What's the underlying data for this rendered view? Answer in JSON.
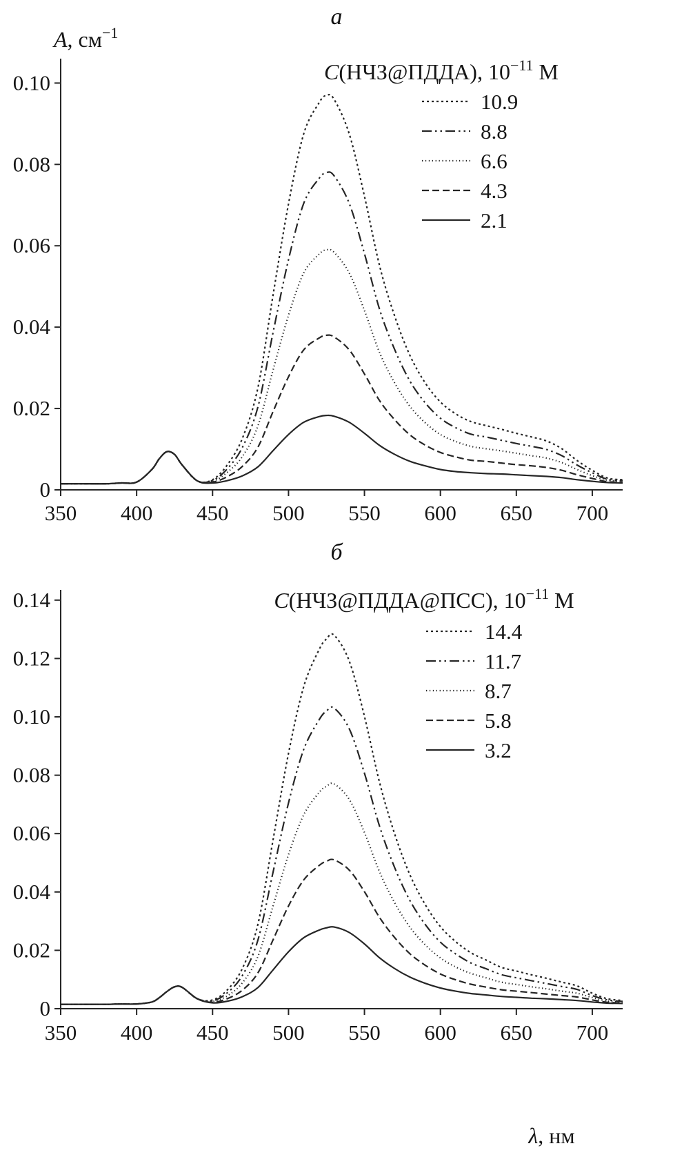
{
  "figure": {
    "background": "#ffffff",
    "line_color": "#262626",
    "text_color": "#161616"
  },
  "line_styles": {
    "dot": "3 4",
    "dashdotdot": "14 5 2.5 5 2.5 5",
    "finedot": "1.3 3.6",
    "dash": "10 5",
    "solid": ""
  },
  "chart_data": [
    {
      "type": "line",
      "panel_label": "а",
      "ylabel": {
        "italic": "A",
        "rest": ", см",
        "sup": "−1"
      },
      "xlabel": null,
      "xlim": [
        350,
        720
      ],
      "ylim": [
        0,
        0.106
      ],
      "x_ticks": [
        350,
        400,
        450,
        500,
        550,
        600,
        650,
        700
      ],
      "y_ticks": [
        0,
        0.02,
        0.04,
        0.06,
        0.08,
        0.1
      ],
      "y_tick_labels": [
        "0",
        "0.02",
        "0.04",
        "0.06",
        "0.08",
        "0.10"
      ],
      "grid": false,
      "legend": {
        "position": "upper-right",
        "title": {
          "italic": "C",
          "rest": "(НЧЗ@ПДДА), 10",
          "sup": "−11",
          "unit": " М"
        },
        "entries": [
          {
            "label": "10.9",
            "style": "dot"
          },
          {
            "label": "8.8",
            "style": "dashdotdot"
          },
          {
            "label": "6.6",
            "style": "finedot"
          },
          {
            "label": "4.3",
            "style": "dash"
          },
          {
            "label": "2.1",
            "style": "solid"
          }
        ]
      },
      "x": [
        350,
        360,
        370,
        380,
        390,
        400,
        410,
        415,
        420,
        425,
        430,
        440,
        450,
        460,
        470,
        480,
        490,
        500,
        510,
        520,
        525,
        530,
        540,
        550,
        560,
        570,
        580,
        590,
        600,
        610,
        620,
        630,
        640,
        650,
        660,
        670,
        680,
        690,
        700,
        710,
        720
      ],
      "series": [
        {
          "name": "10.9",
          "style": "dot",
          "peak_nm": 525,
          "peak_A": 0.097,
          "values": [
            0.0015,
            0.0015,
            0.0015,
            0.0015,
            0.0017,
            0.0019,
            0.005,
            0.0077,
            0.0094,
            0.0087,
            0.0061,
            0.0022,
            0.0025,
            0.0063,
            0.013,
            0.0254,
            0.0483,
            0.0703,
            0.0875,
            0.0951,
            0.097,
            0.096,
            0.0875,
            0.0722,
            0.055,
            0.0426,
            0.033,
            0.0263,
            0.0216,
            0.0187,
            0.0168,
            0.0158,
            0.0149,
            0.0139,
            0.013,
            0.012,
            0.0101,
            0.0072,
            0.0048,
            0.0029,
            0.0025
          ]
        },
        {
          "name": "8.8",
          "style": "dashdotdot",
          "peak_nm": 525,
          "peak_A": 0.078,
          "values": [
            0.0015,
            0.0015,
            0.0015,
            0.0015,
            0.0017,
            0.0019,
            0.005,
            0.0077,
            0.0094,
            0.0087,
            0.0061,
            0.0022,
            0.0023,
            0.0053,
            0.0107,
            0.0206,
            0.039,
            0.0566,
            0.0704,
            0.0765,
            0.078,
            0.0772,
            0.0704,
            0.0581,
            0.0443,
            0.0344,
            0.0267,
            0.0214,
            0.0176,
            0.0153,
            0.0137,
            0.013,
            0.0122,
            0.0114,
            0.0107,
            0.0099,
            0.0084,
            0.0061,
            0.0042,
            0.0026,
            0.0023
          ]
        },
        {
          "name": "6.6",
          "style": "finedot",
          "peak_nm": 525,
          "peak_A": 0.059,
          "values": [
            0.0015,
            0.0015,
            0.0015,
            0.0015,
            0.0017,
            0.0019,
            0.005,
            0.0077,
            0.0094,
            0.0087,
            0.0061,
            0.0022,
            0.0021,
            0.0044,
            0.0084,
            0.0159,
            0.0297,
            0.0429,
            0.0533,
            0.0579,
            0.059,
            0.0584,
            0.0533,
            0.0441,
            0.0337,
            0.0262,
            0.0205,
            0.0165,
            0.0136,
            0.0119,
            0.0107,
            0.0101,
            0.0096,
            0.009,
            0.0084,
            0.0078,
            0.0067,
            0.005,
            0.0035,
            0.0024,
            0.0021
          ]
        },
        {
          "name": "4.3",
          "style": "dash",
          "peak_nm": 525,
          "peak_A": 0.038,
          "values": [
            0.0015,
            0.0015,
            0.0015,
            0.0015,
            0.0017,
            0.0019,
            0.005,
            0.0077,
            0.0094,
            0.0087,
            0.0061,
            0.0022,
            0.0019,
            0.0033,
            0.0059,
            0.0106,
            0.0194,
            0.0278,
            0.0344,
            0.0373,
            0.038,
            0.0376,
            0.0344,
            0.0285,
            0.0219,
            0.0172,
            0.0135,
            0.011,
            0.0092,
            0.0081,
            0.0073,
            0.007,
            0.0066,
            0.0062,
            0.0059,
            0.0055,
            0.0048,
            0.0037,
            0.0028,
            0.002,
            0.0019
          ]
        },
        {
          "name": "2.1",
          "style": "solid",
          "peak_nm": 525,
          "peak_A": 0.018,
          "values": [
            0.0015,
            0.0015,
            0.0015,
            0.0015,
            0.0017,
            0.0019,
            0.005,
            0.0077,
            0.0094,
            0.0087,
            0.0061,
            0.0022,
            0.0017,
            0.0023,
            0.0035,
            0.0057,
            0.0097,
            0.0136,
            0.0166,
            0.018,
            0.0183,
            0.0181,
            0.0166,
            0.0139,
            0.0109,
            0.0087,
            0.007,
            0.0059,
            0.005,
            0.0045,
            0.0042,
            0.004,
            0.0039,
            0.0037,
            0.0035,
            0.0033,
            0.003,
            0.0025,
            0.0021,
            0.0018,
            0.0017
          ]
        }
      ]
    },
    {
      "type": "line",
      "panel_label": "б",
      "ylabel": null,
      "xlabel": {
        "italic": "λ",
        "rest": ", нм"
      },
      "xlim": [
        350,
        720
      ],
      "ylim": [
        0,
        0.1435
      ],
      "x_ticks": [
        350,
        400,
        450,
        500,
        550,
        600,
        650,
        700
      ],
      "y_ticks": [
        0,
        0.02,
        0.04,
        0.06,
        0.08,
        0.1,
        0.12,
        0.14
      ],
      "y_tick_labels": [
        "0",
        "0.02",
        "0.04",
        "0.06",
        "0.08",
        "0.10",
        "0.12",
        "0.14"
      ],
      "grid": false,
      "legend": {
        "position": "upper-right",
        "title": {
          "italic": "C",
          "rest": "(НЧЗ@ПДДА@ПСС), 10",
          "sup": "−11",
          "unit": " М"
        },
        "entries": [
          {
            "label": "14.4",
            "style": "dot"
          },
          {
            "label": "11.7",
            "style": "dashdotdot"
          },
          {
            "label": "8.7",
            "style": "finedot"
          },
          {
            "label": "5.8",
            "style": "dash"
          },
          {
            "label": "3.2",
            "style": "solid"
          }
        ]
      },
      "x": [
        350,
        360,
        370,
        380,
        390,
        400,
        410,
        415,
        420,
        425,
        430,
        440,
        450,
        460,
        470,
        480,
        490,
        500,
        510,
        520,
        525,
        530,
        540,
        550,
        560,
        570,
        580,
        590,
        600,
        610,
        620,
        630,
        640,
        650,
        660,
        670,
        680,
        690,
        700,
        710,
        720
      ],
      "series": [
        {
          "name": "14.4",
          "style": "dot",
          "peak_nm": 528,
          "peak_A": 0.128,
          "values": [
            0.0015,
            0.0015,
            0.0015,
            0.0015,
            0.0016,
            0.0016,
            0.0023,
            0.0038,
            0.0059,
            0.0075,
            0.0073,
            0.0034,
            0.003,
            0.0066,
            0.0142,
            0.0293,
            0.0584,
            0.0875,
            0.1103,
            0.1229,
            0.1267,
            0.128,
            0.1191,
            0.1002,
            0.0774,
            0.0597,
            0.0458,
            0.0357,
            0.0281,
            0.023,
            0.0192,
            0.0167,
            0.0142,
            0.0129,
            0.0116,
            0.0104,
            0.0091,
            0.0078,
            0.0053,
            0.0034,
            0.0028
          ]
        },
        {
          "name": "11.7",
          "style": "dashdotdot",
          "peak_nm": 528,
          "peak_A": 0.103,
          "values": [
            0.0015,
            0.0015,
            0.0015,
            0.0015,
            0.0016,
            0.0016,
            0.0023,
            0.0038,
            0.0059,
            0.0075,
            0.0073,
            0.0034,
            0.0027,
            0.0056,
            0.0117,
            0.0238,
            0.0472,
            0.0705,
            0.0888,
            0.0989,
            0.102,
            0.103,
            0.0959,
            0.0807,
            0.0624,
            0.0482,
            0.037,
            0.0289,
            0.0228,
            0.0188,
            0.0157,
            0.0137,
            0.0117,
            0.0106,
            0.0096,
            0.0086,
            0.0076,
            0.0066,
            0.0045,
            0.003,
            0.0025
          ]
        },
        {
          "name": "8.7",
          "style": "finedot",
          "peak_nm": 528,
          "peak_A": 0.077,
          "values": [
            0.0015,
            0.0015,
            0.0015,
            0.0015,
            0.0016,
            0.0016,
            0.0023,
            0.0038,
            0.0059,
            0.0075,
            0.0073,
            0.0034,
            0.0025,
            0.0045,
            0.0091,
            0.0181,
            0.0355,
            0.0528,
            0.0664,
            0.074,
            0.0762,
            0.077,
            0.0717,
            0.0604,
            0.0468,
            0.0362,
            0.0279,
            0.0219,
            0.0174,
            0.0143,
            0.0121,
            0.0106,
            0.0091,
            0.0083,
            0.0075,
            0.0068,
            0.006,
            0.0053,
            0.0038,
            0.0026,
            0.0023
          ]
        },
        {
          "name": "5.8",
          "style": "dash",
          "peak_nm": 528,
          "peak_A": 0.051,
          "values": [
            0.0015,
            0.0015,
            0.0015,
            0.0015,
            0.0016,
            0.0016,
            0.0023,
            0.0038,
            0.0059,
            0.0075,
            0.0073,
            0.0034,
            0.0022,
            0.0035,
            0.0065,
            0.0124,
            0.0238,
            0.0352,
            0.0441,
            0.049,
            0.0505,
            0.051,
            0.0475,
            0.0401,
            0.0312,
            0.0243,
            0.0188,
            0.0149,
            0.0119,
            0.0099,
            0.0084,
            0.0074,
            0.0065,
            0.006,
            0.0055,
            0.005,
            0.0045,
            0.004,
            0.003,
            0.0022,
            0.002
          ]
        },
        {
          "name": "3.2",
          "style": "solid",
          "peak_nm": 528,
          "peak_A": 0.028,
          "values": [
            0.0015,
            0.0015,
            0.0015,
            0.0015,
            0.0016,
            0.0016,
            0.0023,
            0.0038,
            0.0059,
            0.0075,
            0.0073,
            0.0034,
            0.002,
            0.0026,
            0.0042,
            0.0073,
            0.0134,
            0.0195,
            0.0243,
            0.0269,
            0.0277,
            0.028,
            0.0261,
            0.0222,
            0.0174,
            0.0137,
            0.0108,
            0.0087,
            0.0071,
            0.006,
            0.0052,
            0.0047,
            0.0042,
            0.0039,
            0.0036,
            0.0034,
            0.0031,
            0.0028,
            0.0023,
            0.0019,
            0.0018
          ]
        }
      ]
    }
  ]
}
